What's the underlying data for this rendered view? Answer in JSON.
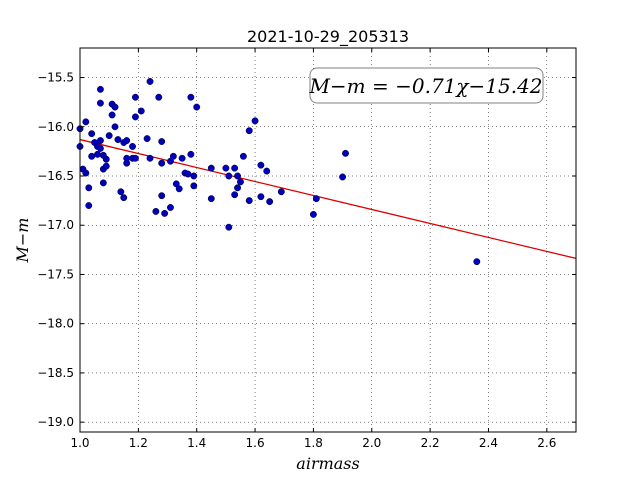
{
  "chart_data": {
    "type": "scatter",
    "title": "2021-10-29_205313",
    "xlabel": "airmass",
    "ylabel": "M−m",
    "xlim": [
      1.0,
      2.7
    ],
    "ylim": [
      -19.1,
      -15.2
    ],
    "y_inverted": true,
    "xticks": [
      "1.0",
      "1.2",
      "1.4",
      "1.6",
      "1.8",
      "2.0",
      "2.2",
      "2.4",
      "2.6"
    ],
    "xtick_values": [
      1.0,
      1.2,
      1.4,
      1.6,
      1.8,
      2.0,
      2.2,
      2.4,
      2.6
    ],
    "yticks": [
      "−15.5",
      "−16.0",
      "−16.5",
      "−17.0",
      "−17.5",
      "−18.0",
      "−18.5",
      "−19.0"
    ],
    "ytick_values": [
      -15.5,
      -16.0,
      -16.5,
      -17.0,
      -17.5,
      -18.0,
      -18.5,
      -19.0
    ],
    "grid": true,
    "annotation": "M−m = −0.71χ−15.42",
    "fit_line": {
      "slope": -0.71,
      "intercept": -15.42,
      "color": "#dd0000"
    },
    "point_color": "#0000bb",
    "points": [
      [
        1.0,
        -16.02
      ],
      [
        1.0,
        -16.2
      ],
      [
        1.01,
        -16.43
      ],
      [
        1.02,
        -16.47
      ],
      [
        1.02,
        -15.95
      ],
      [
        1.03,
        -16.62
      ],
      [
        1.03,
        -16.8
      ],
      [
        1.04,
        -16.07
      ],
      [
        1.04,
        -16.3
      ],
      [
        1.05,
        -16.16
      ],
      [
        1.06,
        -16.2
      ],
      [
        1.06,
        -16.28
      ],
      [
        1.07,
        -15.62
      ],
      [
        1.07,
        -15.76
      ],
      [
        1.07,
        -16.14
      ],
      [
        1.07,
        -16.22
      ],
      [
        1.08,
        -16.29
      ],
      [
        1.08,
        -16.57
      ],
      [
        1.08,
        -16.43
      ],
      [
        1.09,
        -16.33
      ],
      [
        1.09,
        -16.4
      ],
      [
        1.1,
        -16.09
      ],
      [
        1.11,
        -15.88
      ],
      [
        1.11,
        -15.77
      ],
      [
        1.12,
        -15.8
      ],
      [
        1.12,
        -16.0
      ],
      [
        1.13,
        -16.13
      ],
      [
        1.14,
        -16.66
      ],
      [
        1.15,
        -16.72
      ],
      [
        1.15,
        -16.16
      ],
      [
        1.16,
        -16.14
      ],
      [
        1.16,
        -16.37
      ],
      [
        1.16,
        -16.32
      ],
      [
        1.18,
        -16.2
      ],
      [
        1.18,
        -16.32
      ],
      [
        1.19,
        -15.7
      ],
      [
        1.19,
        -15.9
      ],
      [
        1.19,
        -16.32
      ],
      [
        1.21,
        -15.84
      ],
      [
        1.23,
        -16.12
      ],
      [
        1.24,
        -16.32
      ],
      [
        1.24,
        -15.54
      ],
      [
        1.26,
        -16.86
      ],
      [
        1.27,
        -15.7
      ],
      [
        1.28,
        -16.15
      ],
      [
        1.28,
        -16.37
      ],
      [
        1.28,
        -16.7
      ],
      [
        1.29,
        -16.88
      ],
      [
        1.31,
        -16.82
      ],
      [
        1.31,
        -16.35
      ],
      [
        1.32,
        -16.3
      ],
      [
        1.33,
        -16.58
      ],
      [
        1.34,
        -16.63
      ],
      [
        1.35,
        -16.32
      ],
      [
        1.36,
        -16.47
      ],
      [
        1.37,
        -16.48
      ],
      [
        1.38,
        -16.28
      ],
      [
        1.38,
        -15.7
      ],
      [
        1.39,
        -16.5
      ],
      [
        1.39,
        -16.6
      ],
      [
        1.4,
        -15.8
      ],
      [
        1.45,
        -16.42
      ],
      [
        1.45,
        -16.73
      ],
      [
        1.5,
        -16.42
      ],
      [
        1.51,
        -16.5
      ],
      [
        1.51,
        -17.02
      ],
      [
        1.53,
        -16.69
      ],
      [
        1.53,
        -16.42
      ],
      [
        1.54,
        -16.5
      ],
      [
        1.54,
        -16.62
      ],
      [
        1.55,
        -16.56
      ],
      [
        1.56,
        -16.3
      ],
      [
        1.58,
        -16.75
      ],
      [
        1.58,
        -16.04
      ],
      [
        1.6,
        -15.94
      ],
      [
        1.62,
        -16.39
      ],
      [
        1.62,
        -16.71
      ],
      [
        1.64,
        -16.45
      ],
      [
        1.65,
        -16.76
      ],
      [
        1.69,
        -16.66
      ],
      [
        1.8,
        -16.89
      ],
      [
        1.81,
        -16.73
      ],
      [
        1.9,
        -16.51
      ],
      [
        1.91,
        -16.27
      ],
      [
        2.36,
        -17.37
      ]
    ]
  }
}
